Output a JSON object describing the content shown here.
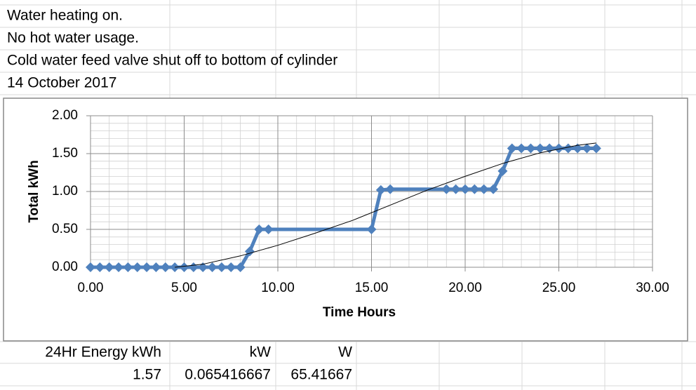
{
  "notes": [
    "Water heating on.",
    "No hot water usage.",
    "Cold water  feed valve shut off to bottom of cylinder",
    "14 October 2017"
  ],
  "chart_data": {
    "type": "line",
    "x_label": "Time Hours",
    "y_label": "Total kWh",
    "xlim": [
      0,
      30
    ],
    "xticks": [
      {
        "value": 0,
        "label": "0.00"
      },
      {
        "value": 5,
        "label": "5.00"
      },
      {
        "value": 10,
        "label": "10.00"
      },
      {
        "value": 15,
        "label": "15.00"
      },
      {
        "value": 20,
        "label": "20.00"
      },
      {
        "value": 25,
        "label": "25.00"
      },
      {
        "value": 30,
        "label": "30.00"
      }
    ],
    "ylim": [
      0,
      2
    ],
    "yticks": [
      {
        "value": 0,
        "label": "0.00"
      },
      {
        "value": 0.5,
        "label": "0.50"
      },
      {
        "value": 1,
        "label": "1.00"
      },
      {
        "value": 1.5,
        "label": "1.50"
      },
      {
        "value": 2,
        "label": "2.00"
      }
    ],
    "grid": true,
    "minor_grid": true,
    "series": [
      {
        "color": "#4f81bd",
        "marker": "diamond",
        "x": [
          0,
          0.5,
          1,
          1.5,
          2,
          2.5,
          3,
          3.5,
          4,
          4.5,
          5,
          5.5,
          6,
          6.5,
          7,
          7.5,
          8,
          8.5,
          9,
          9.5,
          15,
          15.5,
          16,
          19,
          19.5,
          20,
          20.5,
          21,
          21.5,
          22,
          22.5,
          23,
          23.5,
          24,
          24.5,
          25,
          25.5,
          26,
          26.5,
          27
        ],
        "values": [
          0,
          0,
          0,
          0,
          0,
          0,
          0,
          0,
          0,
          0,
          0,
          0,
          0,
          0,
          0,
          0,
          0,
          0.21,
          0.5,
          0.5,
          0.5,
          1.02,
          1.03,
          1.03,
          1.03,
          1.03,
          1.03,
          1.03,
          1.03,
          1.27,
          1.57,
          1.57,
          1.57,
          1.57,
          1.57,
          1.57,
          1.57,
          1.57,
          1.57,
          1.57
        ]
      },
      {
        "color": "#000000",
        "marker": "none",
        "x": [
          4.5,
          6,
          8,
          10,
          12,
          14,
          16,
          18,
          20,
          22,
          24,
          26,
          27
        ],
        "values": [
          0,
          0.04,
          0.15,
          0.29,
          0.45,
          0.62,
          0.82,
          1.02,
          1.2,
          1.37,
          1.51,
          1.61,
          1.64
        ]
      }
    ]
  },
  "table": {
    "header": [
      "24Hr Energy kWh",
      "kW",
      "W"
    ],
    "row": [
      "1.57",
      "0.065416667",
      "65.41667"
    ]
  }
}
